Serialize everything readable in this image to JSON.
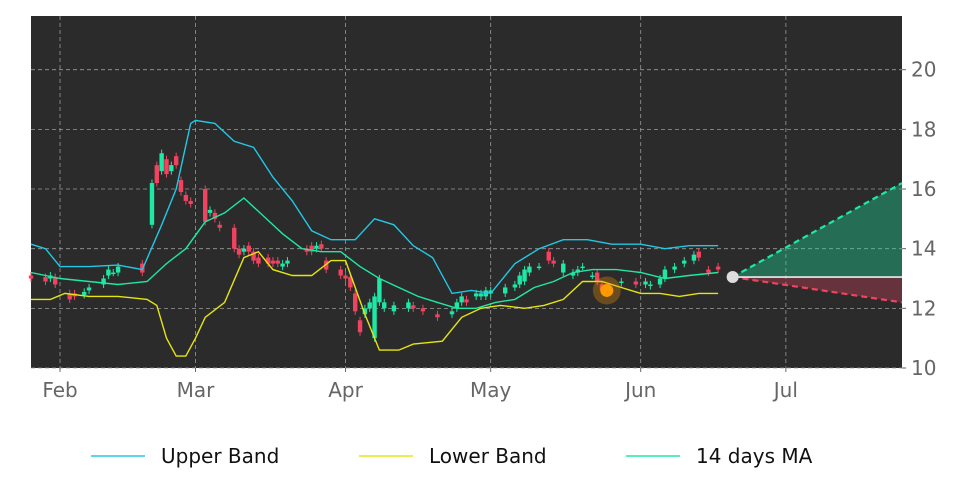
{
  "chart_data": {
    "type": "candlestick",
    "x_domain": [
      "2025-01-26",
      "2025-07-25"
    ],
    "ylim": [
      10,
      21.8
    ],
    "grid": true,
    "legend": "bottom",
    "x_ticks": [
      {
        "date": "2025-02-01",
        "label": "Feb"
      },
      {
        "date": "2025-03-01",
        "label": "Mar"
      },
      {
        "date": "2025-04-01",
        "label": "Apr"
      },
      {
        "date": "2025-05-01",
        "label": "May"
      },
      {
        "date": "2025-06-01",
        "label": "Jun"
      },
      {
        "date": "2025-07-01",
        "label": "Jul"
      }
    ],
    "y_ticks": [
      10,
      12,
      14,
      16,
      18,
      20
    ],
    "colors": {
      "background": "#2b2b2b",
      "up": "#1de9a6",
      "down": "#f0435f",
      "upper_band": "#22c8e5",
      "lower_band": "#e5e510",
      "ma": "#1de9a6",
      "forecast_up": "#1de9a6",
      "forecast_down": "#f0435f",
      "marker": "#ff9900",
      "last_point": "#dddddd"
    },
    "series": [
      {
        "name": "Upper Band",
        "color": "#22c8e5",
        "points": [
          [
            "2025-01-26",
            14.15
          ],
          [
            "2025-01-29",
            14.0
          ],
          [
            "2025-02-01",
            13.4
          ],
          [
            "2025-02-07",
            13.4
          ],
          [
            "2025-02-13",
            13.45
          ],
          [
            "2025-02-18",
            13.3
          ],
          [
            "2025-02-22",
            14.8
          ],
          [
            "2025-02-25",
            16.0
          ],
          [
            "2025-02-28",
            18.2
          ],
          [
            "2025-03-01",
            18.3
          ],
          [
            "2025-03-05",
            18.2
          ],
          [
            "2025-03-09",
            17.6
          ],
          [
            "2025-03-13",
            17.4
          ],
          [
            "2025-03-17",
            16.4
          ],
          [
            "2025-03-21",
            15.6
          ],
          [
            "2025-03-25",
            14.6
          ],
          [
            "2025-03-29",
            14.3
          ],
          [
            "2025-04-03",
            14.3
          ],
          [
            "2025-04-07",
            15.0
          ],
          [
            "2025-04-11",
            14.8
          ],
          [
            "2025-04-15",
            14.1
          ],
          [
            "2025-04-19",
            13.7
          ],
          [
            "2025-04-23",
            12.5
          ],
          [
            "2025-04-27",
            12.6
          ],
          [
            "2025-05-01",
            12.5
          ],
          [
            "2025-05-06",
            13.5
          ],
          [
            "2025-05-11",
            14.0
          ],
          [
            "2025-05-16",
            14.3
          ],
          [
            "2025-05-21",
            14.3
          ],
          [
            "2025-05-26",
            14.15
          ],
          [
            "2025-06-01",
            14.15
          ],
          [
            "2025-06-06",
            14.0
          ],
          [
            "2025-06-11",
            14.1
          ],
          [
            "2025-06-17",
            14.1
          ]
        ]
      },
      {
        "name": "Lower Band",
        "color": "#e5e510",
        "points": [
          [
            "2025-01-26",
            12.3
          ],
          [
            "2025-01-30",
            12.3
          ],
          [
            "2025-02-02",
            12.5
          ],
          [
            "2025-02-07",
            12.4
          ],
          [
            "2025-02-13",
            12.4
          ],
          [
            "2025-02-19",
            12.3
          ],
          [
            "2025-02-21",
            12.1
          ],
          [
            "2025-02-23",
            11.0
          ],
          [
            "2025-02-25",
            10.4
          ],
          [
            "2025-02-27",
            10.4
          ],
          [
            "2025-03-01",
            11.0
          ],
          [
            "2025-03-03",
            11.7
          ],
          [
            "2025-03-07",
            12.2
          ],
          [
            "2025-03-11",
            13.7
          ],
          [
            "2025-03-14",
            13.9
          ],
          [
            "2025-03-17",
            13.3
          ],
          [
            "2025-03-21",
            13.1
          ],
          [
            "2025-03-25",
            13.1
          ],
          [
            "2025-03-29",
            13.6
          ],
          [
            "2025-04-01",
            13.6
          ],
          [
            "2025-04-05",
            11.8
          ],
          [
            "2025-04-08",
            10.6
          ],
          [
            "2025-04-12",
            10.6
          ],
          [
            "2025-04-15",
            10.8
          ],
          [
            "2025-04-21",
            10.9
          ],
          [
            "2025-04-25",
            11.7
          ],
          [
            "2025-04-29",
            12.0
          ],
          [
            "2025-05-03",
            12.1
          ],
          [
            "2025-05-08",
            12.0
          ],
          [
            "2025-05-12",
            12.1
          ],
          [
            "2025-05-16",
            12.3
          ],
          [
            "2025-05-20",
            12.9
          ],
          [
            "2025-05-24",
            12.9
          ],
          [
            "2025-05-28",
            12.7
          ],
          [
            "2025-06-01",
            12.5
          ],
          [
            "2025-06-05",
            12.5
          ],
          [
            "2025-06-09",
            12.4
          ],
          [
            "2025-06-13",
            12.5
          ],
          [
            "2025-06-17",
            12.5
          ]
        ]
      },
      {
        "name": "14 days MA",
        "color": "#1de9a6",
        "points": [
          [
            "2025-01-26",
            13.2
          ],
          [
            "2025-02-01",
            13.0
          ],
          [
            "2025-02-07",
            12.9
          ],
          [
            "2025-02-13",
            12.8
          ],
          [
            "2025-02-19",
            12.9
          ],
          [
            "2025-02-23",
            13.5
          ],
          [
            "2025-02-27",
            14.0
          ],
          [
            "2025-03-03",
            14.9
          ],
          [
            "2025-03-07",
            15.2
          ],
          [
            "2025-03-11",
            15.7
          ],
          [
            "2025-03-15",
            15.1
          ],
          [
            "2025-03-19",
            14.5
          ],
          [
            "2025-03-23",
            14.0
          ],
          [
            "2025-03-27",
            13.9
          ],
          [
            "2025-03-31",
            13.9
          ],
          [
            "2025-04-04",
            13.4
          ],
          [
            "2025-04-08",
            13.0
          ],
          [
            "2025-04-12",
            12.7
          ],
          [
            "2025-04-16",
            12.4
          ],
          [
            "2025-04-20",
            12.2
          ],
          [
            "2025-04-24",
            12.0
          ],
          [
            "2025-04-28",
            12.0
          ],
          [
            "2025-05-02",
            12.2
          ],
          [
            "2025-05-06",
            12.3
          ],
          [
            "2025-05-10",
            12.7
          ],
          [
            "2025-05-14",
            12.9
          ],
          [
            "2025-05-18",
            13.2
          ],
          [
            "2025-05-22",
            13.3
          ],
          [
            "2025-05-27",
            13.3
          ],
          [
            "2025-06-01",
            13.2
          ],
          [
            "2025-06-06",
            13.0
          ],
          [
            "2025-06-11",
            13.1
          ],
          [
            "2025-06-17",
            13.2
          ]
        ]
      }
    ],
    "candles": [
      [
        "2025-01-26",
        13.1,
        13.0
      ],
      [
        "2025-01-29",
        13.05,
        12.9
      ],
      [
        "2025-01-30",
        13.0,
        13.1
      ],
      [
        "2025-01-31",
        13.05,
        12.8
      ],
      [
        "2025-02-03",
        12.5,
        12.3
      ],
      [
        "2025-02-04",
        12.5,
        12.4
      ],
      [
        "2025-02-06",
        12.45,
        12.55
      ],
      [
        "2025-02-07",
        12.6,
        12.7
      ],
      [
        "2025-02-10",
        12.8,
        13.0
      ],
      [
        "2025-02-11",
        13.1,
        13.3
      ],
      [
        "2025-02-12",
        13.2,
        13.2
      ],
      [
        "2025-02-13",
        13.2,
        13.4
      ],
      [
        "2025-02-18",
        13.5,
        13.2
      ],
      [
        "2025-02-20",
        14.8,
        16.2
      ],
      [
        "2025-02-21",
        16.8,
        16.2
      ],
      [
        "2025-02-22",
        16.6,
        17.2
      ],
      [
        "2025-02-23",
        17.0,
        16.5
      ],
      [
        "2025-02-24",
        16.6,
        16.8
      ],
      [
        "2025-02-25",
        17.1,
        16.8
      ],
      [
        "2025-02-26",
        16.3,
        15.9
      ],
      [
        "2025-02-27",
        15.8,
        15.6
      ],
      [
        "2025-02-28",
        15.6,
        15.5
      ],
      [
        "2025-03-03",
        16.0,
        14.9
      ],
      [
        "2025-03-04",
        15.2,
        15.3
      ],
      [
        "2025-03-05",
        15.2,
        15.0
      ],
      [
        "2025-03-06",
        14.8,
        14.7
      ],
      [
        "2025-03-09",
        14.7,
        14.0
      ],
      [
        "2025-03-10",
        14.0,
        13.8
      ],
      [
        "2025-03-11",
        13.9,
        14.0
      ],
      [
        "2025-03-12",
        14.1,
        13.9
      ],
      [
        "2025-03-13",
        13.9,
        13.6
      ],
      [
        "2025-03-14",
        13.7,
        13.5
      ],
      [
        "2025-03-16",
        13.7,
        13.5
      ],
      [
        "2025-03-17",
        13.6,
        13.5
      ],
      [
        "2025-03-18",
        13.6,
        13.5
      ],
      [
        "2025-03-19",
        13.4,
        13.5
      ],
      [
        "2025-03-20",
        13.5,
        13.6
      ],
      [
        "2025-03-24",
        14.0,
        13.9
      ],
      [
        "2025-03-25",
        14.1,
        13.9
      ],
      [
        "2025-03-26",
        14.0,
        14.1
      ],
      [
        "2025-03-27",
        14.15,
        14.0
      ],
      [
        "2025-03-28",
        13.6,
        13.3
      ],
      [
        "2025-03-31",
        13.3,
        13.1
      ],
      [
        "2025-04-01",
        13.1,
        13.0
      ],
      [
        "2025-04-02",
        13.05,
        12.7
      ],
      [
        "2025-04-03",
        12.5,
        11.9
      ],
      [
        "2025-04-04",
        11.6,
        11.2
      ],
      [
        "2025-04-05",
        11.8,
        12.0
      ],
      [
        "2025-04-06",
        12.0,
        12.2
      ],
      [
        "2025-04-07",
        11.0,
        12.4
      ],
      [
        "2025-04-08",
        12.2,
        13.0
      ],
      [
        "2025-04-09",
        12.0,
        12.2
      ],
      [
        "2025-04-11",
        11.9,
        12.1
      ],
      [
        "2025-04-14",
        12.0,
        12.2
      ],
      [
        "2025-04-15",
        12.1,
        12.0
      ],
      [
        "2025-04-17",
        12.0,
        11.9
      ],
      [
        "2025-04-20",
        11.8,
        11.7
      ],
      [
        "2025-04-23",
        11.8,
        11.9
      ],
      [
        "2025-04-24",
        12.0,
        12.2
      ],
      [
        "2025-04-25",
        12.2,
        12.4
      ],
      [
        "2025-04-26",
        12.3,
        12.2
      ],
      [
        "2025-04-28",
        12.4,
        12.5
      ],
      [
        "2025-04-29",
        12.4,
        12.5
      ],
      [
        "2025-04-30",
        12.4,
        12.6
      ],
      [
        "2025-05-01",
        12.5,
        12.6
      ],
      [
        "2025-05-04",
        12.5,
        12.7
      ],
      [
        "2025-05-06",
        12.7,
        12.8
      ],
      [
        "2025-05-07",
        12.8,
        13.1
      ],
      [
        "2025-05-08",
        12.9,
        13.3
      ],
      [
        "2025-05-09",
        13.2,
        13.4
      ],
      [
        "2025-05-11",
        13.4,
        13.4
      ],
      [
        "2025-05-13",
        13.9,
        13.6
      ],
      [
        "2025-05-14",
        13.6,
        13.5
      ],
      [
        "2025-05-16",
        13.2,
        13.5
      ],
      [
        "2025-05-18",
        13.1,
        13.2
      ],
      [
        "2025-05-19",
        13.2,
        13.3
      ],
      [
        "2025-05-20",
        13.4,
        13.4
      ],
      [
        "2025-05-22",
        13.1,
        13.1
      ],
      [
        "2025-05-23",
        13.2,
        12.9
      ],
      [
        "2025-05-24",
        12.8,
        12.6
      ],
      [
        "2025-05-28",
        12.85,
        12.9
      ],
      [
        "2025-05-31",
        12.9,
        12.8
      ],
      [
        "2025-06-02",
        12.8,
        12.9
      ],
      [
        "2025-06-03",
        12.75,
        12.8
      ],
      [
        "2025-06-05",
        12.8,
        13.0
      ],
      [
        "2025-06-06",
        13.0,
        13.3
      ],
      [
        "2025-06-08",
        13.3,
        13.4
      ],
      [
        "2025-06-10",
        13.5,
        13.6
      ],
      [
        "2025-06-12",
        13.6,
        13.8
      ],
      [
        "2025-06-13",
        13.9,
        13.7
      ],
      [
        "2025-06-15",
        13.3,
        13.2
      ],
      [
        "2025-06-17",
        13.4,
        13.3
      ]
    ],
    "highlight": {
      "date": "2025-05-25",
      "value": 12.6
    },
    "last_point": {
      "date": "2025-06-20",
      "value": 13.05
    },
    "forecast": {
      "end_date": "2025-07-25",
      "upper": 16.2,
      "lower": 12.2,
      "base": 13.05
    },
    "legend_entries": [
      {
        "name": "Upper Band",
        "color": "#22c8e5"
      },
      {
        "name": "Lower Band",
        "color": "#e5e510"
      },
      {
        "name": "14 days MA",
        "color": "#1de9a6"
      }
    ]
  }
}
